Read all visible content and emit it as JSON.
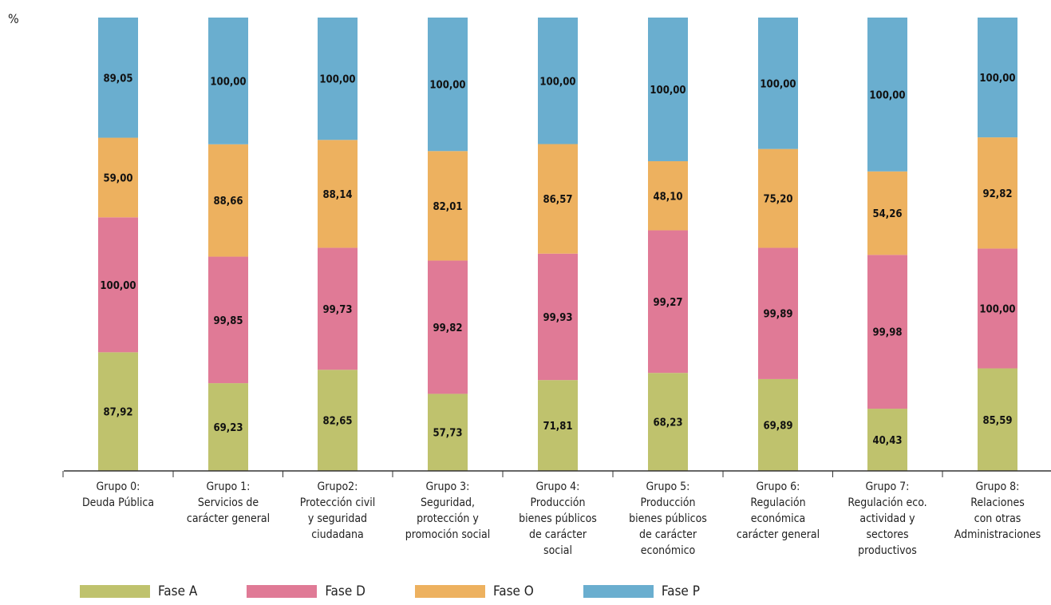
{
  "unit_label": "%",
  "colors": {
    "Fase A": "#bfc26d",
    "Fase D": "#e07a96",
    "Fase O": "#edb15f",
    "Fase P": "#6aaecf"
  },
  "chart_data": {
    "type": "bar",
    "stacked": true,
    "ylabel": "%",
    "stack_order_bottom_to_top": [
      "Fase A",
      "Fase D",
      "Fase O",
      "Fase P"
    ],
    "categories": [
      "Grupo 0: Deuda Pública",
      "Grupo 1: Servicios de carácter general",
      "Grupo2: Protección civil y seguridad ciudadana",
      "Grupo 3: Seguridad, protección y promoción social",
      "Grupo 4: Producción bienes públicos de carácter social",
      "Grupo 5: Producción bienes públicos de carácter económico",
      "Grupo 6: Regulación económica carácter general",
      "Grupo 7: Regulación eco. actividad y sectores productivos",
      "Grupo 8: Relaciones con otras Administraciones"
    ],
    "category_lines": [
      [
        "Grupo 0:",
        "Deuda Pública"
      ],
      [
        "Grupo 1:",
        "Servicios de",
        "carácter general"
      ],
      [
        "Grupo2:",
        "Protección civil",
        "y seguridad",
        "ciudadana"
      ],
      [
        "Grupo 3:",
        "Seguridad,",
        "protección y",
        "promoción social"
      ],
      [
        "Grupo 4:",
        "Producción",
        "bienes públicos",
        "de carácter",
        "social"
      ],
      [
        "Grupo 5:",
        "Producción",
        "bienes públicos",
        "de carácter",
        "económico"
      ],
      [
        "Grupo 6:",
        "Regulación",
        "económica",
        "carácter general"
      ],
      [
        "Grupo 7:",
        "Regulación eco.",
        "actividad y",
        "sectores",
        "productivos"
      ],
      [
        "Grupo 8:",
        "Relaciones",
        "con otras",
        "Administraciones"
      ]
    ],
    "series": [
      {
        "name": "Fase A",
        "values": [
          87.92,
          69.23,
          82.65,
          57.73,
          71.81,
          68.23,
          69.89,
          40.43,
          85.59
        ],
        "labels": [
          "87,92",
          "69,23",
          "82,65",
          "57,73",
          "71,81",
          "68,23",
          "69,89",
          "40,43",
          "85,59"
        ]
      },
      {
        "name": "Fase D",
        "values": [
          100.0,
          99.85,
          99.73,
          99.82,
          99.93,
          99.27,
          99.89,
          99.98,
          100.0
        ],
        "labels": [
          "100,00",
          "99,85",
          "99,73",
          "99,82",
          "99,93",
          "99,27",
          "99,89",
          "99,98",
          "100,00"
        ]
      },
      {
        "name": "Fase O",
        "values": [
          59.0,
          88.66,
          88.14,
          82.01,
          86.57,
          48.1,
          75.2,
          54.26,
          92.82
        ],
        "labels": [
          "59,00",
          "88,66",
          "88,14",
          "82,01",
          "86,57",
          "48,10",
          "75,20",
          "54,26",
          "92,82"
        ]
      },
      {
        "name": "Fase P",
        "values": [
          89.05,
          100.0,
          100.0,
          100.0,
          100.0,
          100.0,
          100.0,
          100.0,
          100.0
        ],
        "labels": [
          "89,05",
          "100,00",
          "100,00",
          "100,00",
          "100,00",
          "100,00",
          "100,00",
          "100,00",
          "100,00"
        ]
      }
    ],
    "legend": [
      "Fase A",
      "Fase D",
      "Fase O",
      "Fase P"
    ],
    "legend_position": "bottom-left",
    "grid": false
  }
}
